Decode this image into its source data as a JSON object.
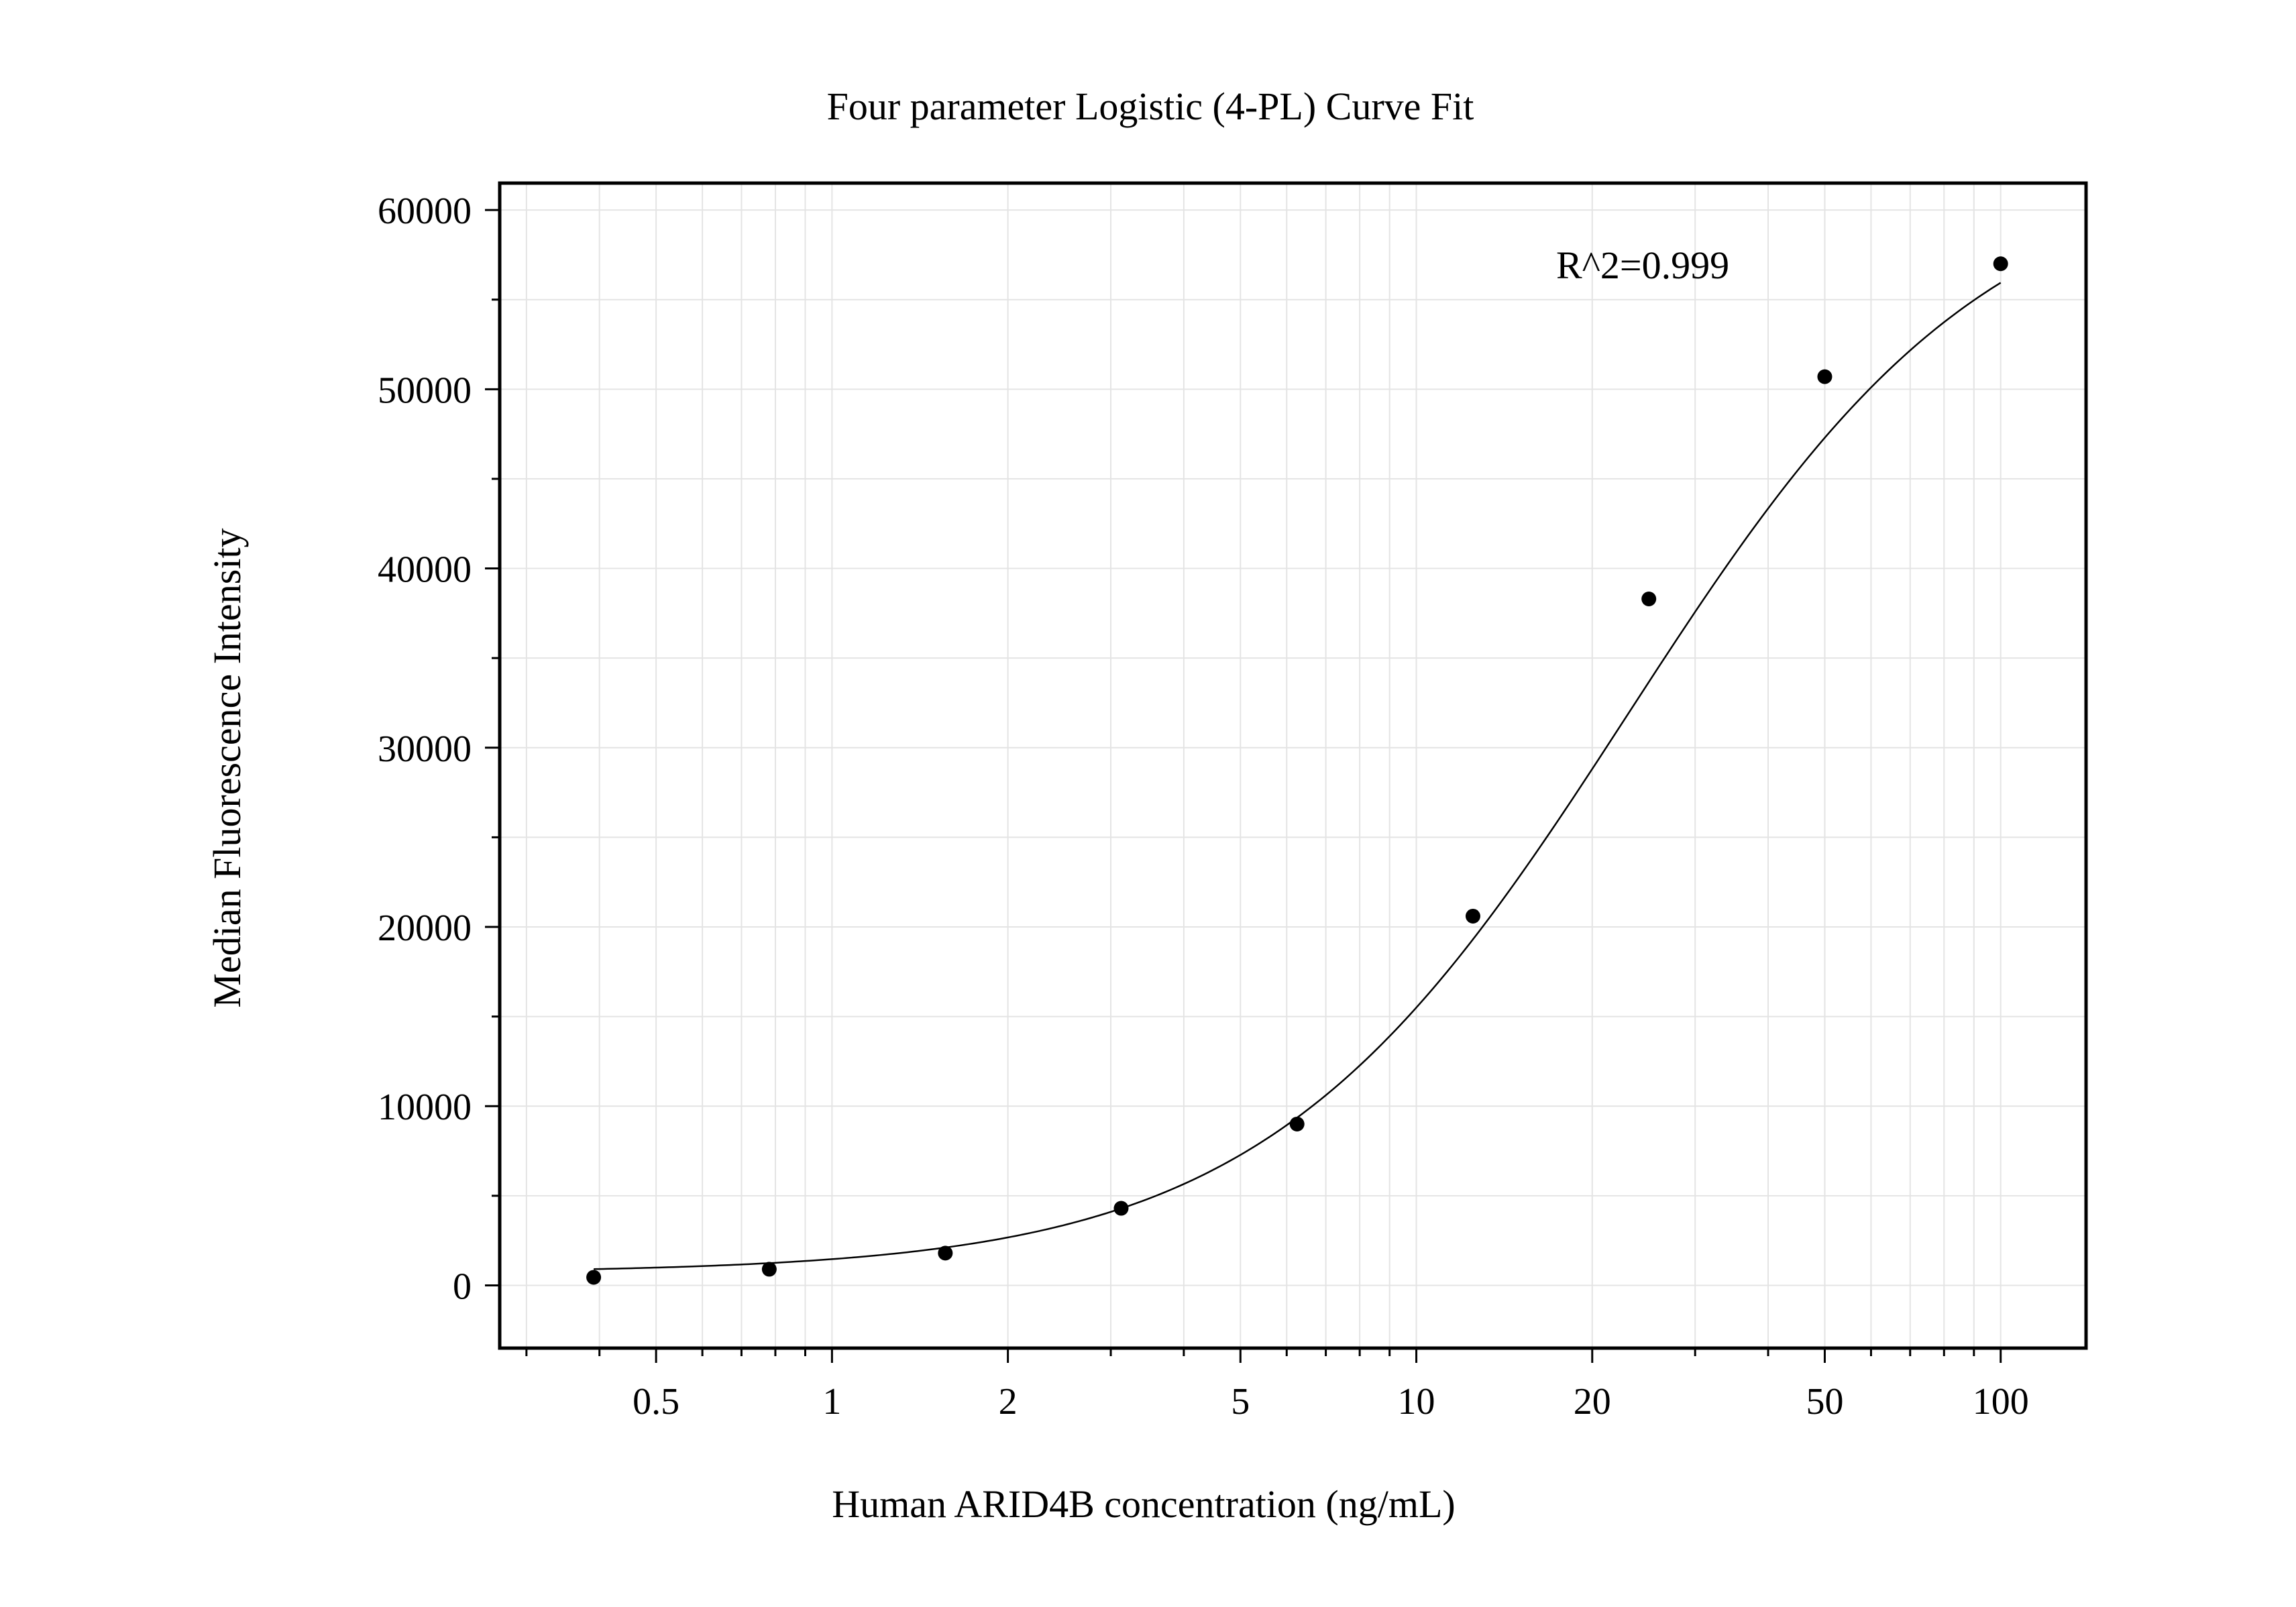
{
  "chart_data": {
    "type": "scatter",
    "title": "Four parameter Logistic (4-PL) Curve Fit",
    "xlabel": "Human ARID4B concentration (ng/mL)",
    "ylabel": "Median Fluorescence Intensity",
    "x_scale": "log",
    "xlim": [
      0.27,
      140
    ],
    "ylim": [
      -3500,
      61500
    ],
    "x_ticks": [
      0.5,
      1,
      2,
      5,
      10,
      20,
      50,
      100
    ],
    "x_tick_labels": [
      "0.5",
      "1",
      "2",
      "5",
      "10",
      "20",
      "50",
      "100"
    ],
    "y_ticks": [
      0,
      10000,
      20000,
      30000,
      40000,
      50000,
      60000
    ],
    "y_tick_labels": [
      "0",
      "10000",
      "20000",
      "30000",
      "40000",
      "50000",
      "60000"
    ],
    "grid": true,
    "annotation": "R^2=0.999",
    "series": [
      {
        "kind": "points",
        "x": [
          0.391,
          0.781,
          1.563,
          3.125,
          6.25,
          12.5,
          25,
          50,
          100
        ],
        "y": [
          450,
          900,
          1800,
          4300,
          9000,
          20600,
          38300,
          50700,
          57000
        ]
      },
      {
        "kind": "fit-curve",
        "model": "4PL",
        "params": {
          "A": 700,
          "B": 1.4,
          "C": 23,
          "D": 63000
        }
      }
    ],
    "colors": {
      "points": "#000000",
      "curve": "#000000",
      "grid": "#e4e4e4",
      "axes": "#000000"
    }
  }
}
